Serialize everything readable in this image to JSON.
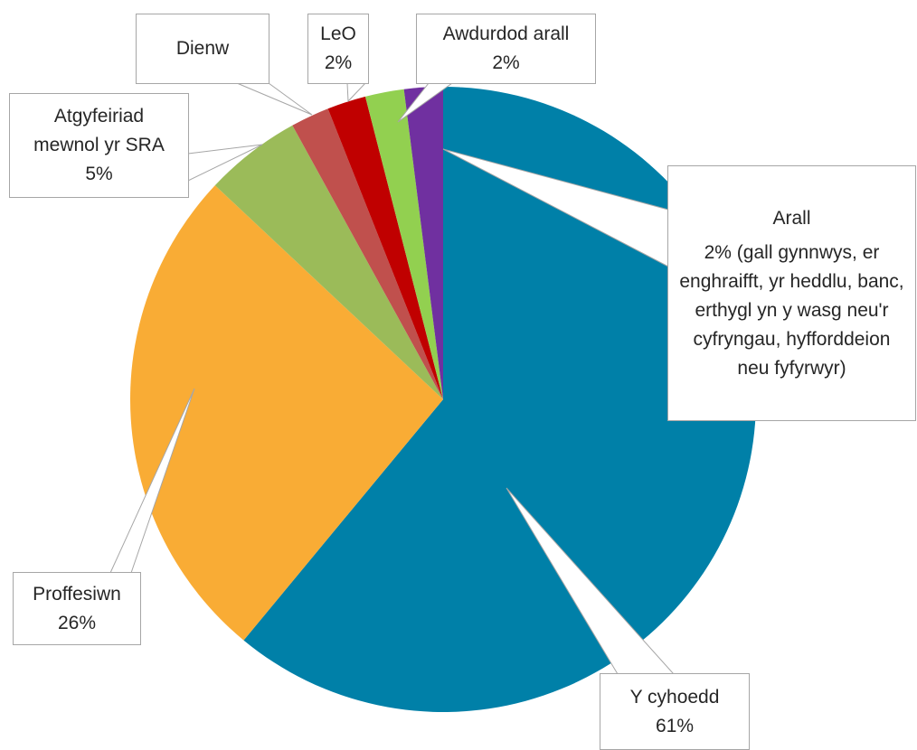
{
  "chart_data": {
    "type": "pie",
    "categories": [
      "Y cyhoedd",
      "Proffesiwn",
      "Atgyfeiriad mewnol yr SRA",
      "Dienw",
      "LeO",
      "Awdurdod arall",
      "Arall"
    ],
    "values": [
      61,
      26,
      5,
      2,
      2,
      2,
      2
    ],
    "value_labels": [
      "61%",
      "26%",
      "5%",
      null,
      "2%",
      "2%",
      "2% (gall gynnwys, er enghraifft, yr heddlu, banc, erthygl yn y wasg neu'r cyfryngau, hyfforddeion neu fyfyrwyr)"
    ],
    "colors": [
      "#0080a8",
      "#f9ac35",
      "#9bbb59",
      "#c0504d",
      "#c00000",
      "#92d050",
      "#7030a0"
    ]
  }
}
